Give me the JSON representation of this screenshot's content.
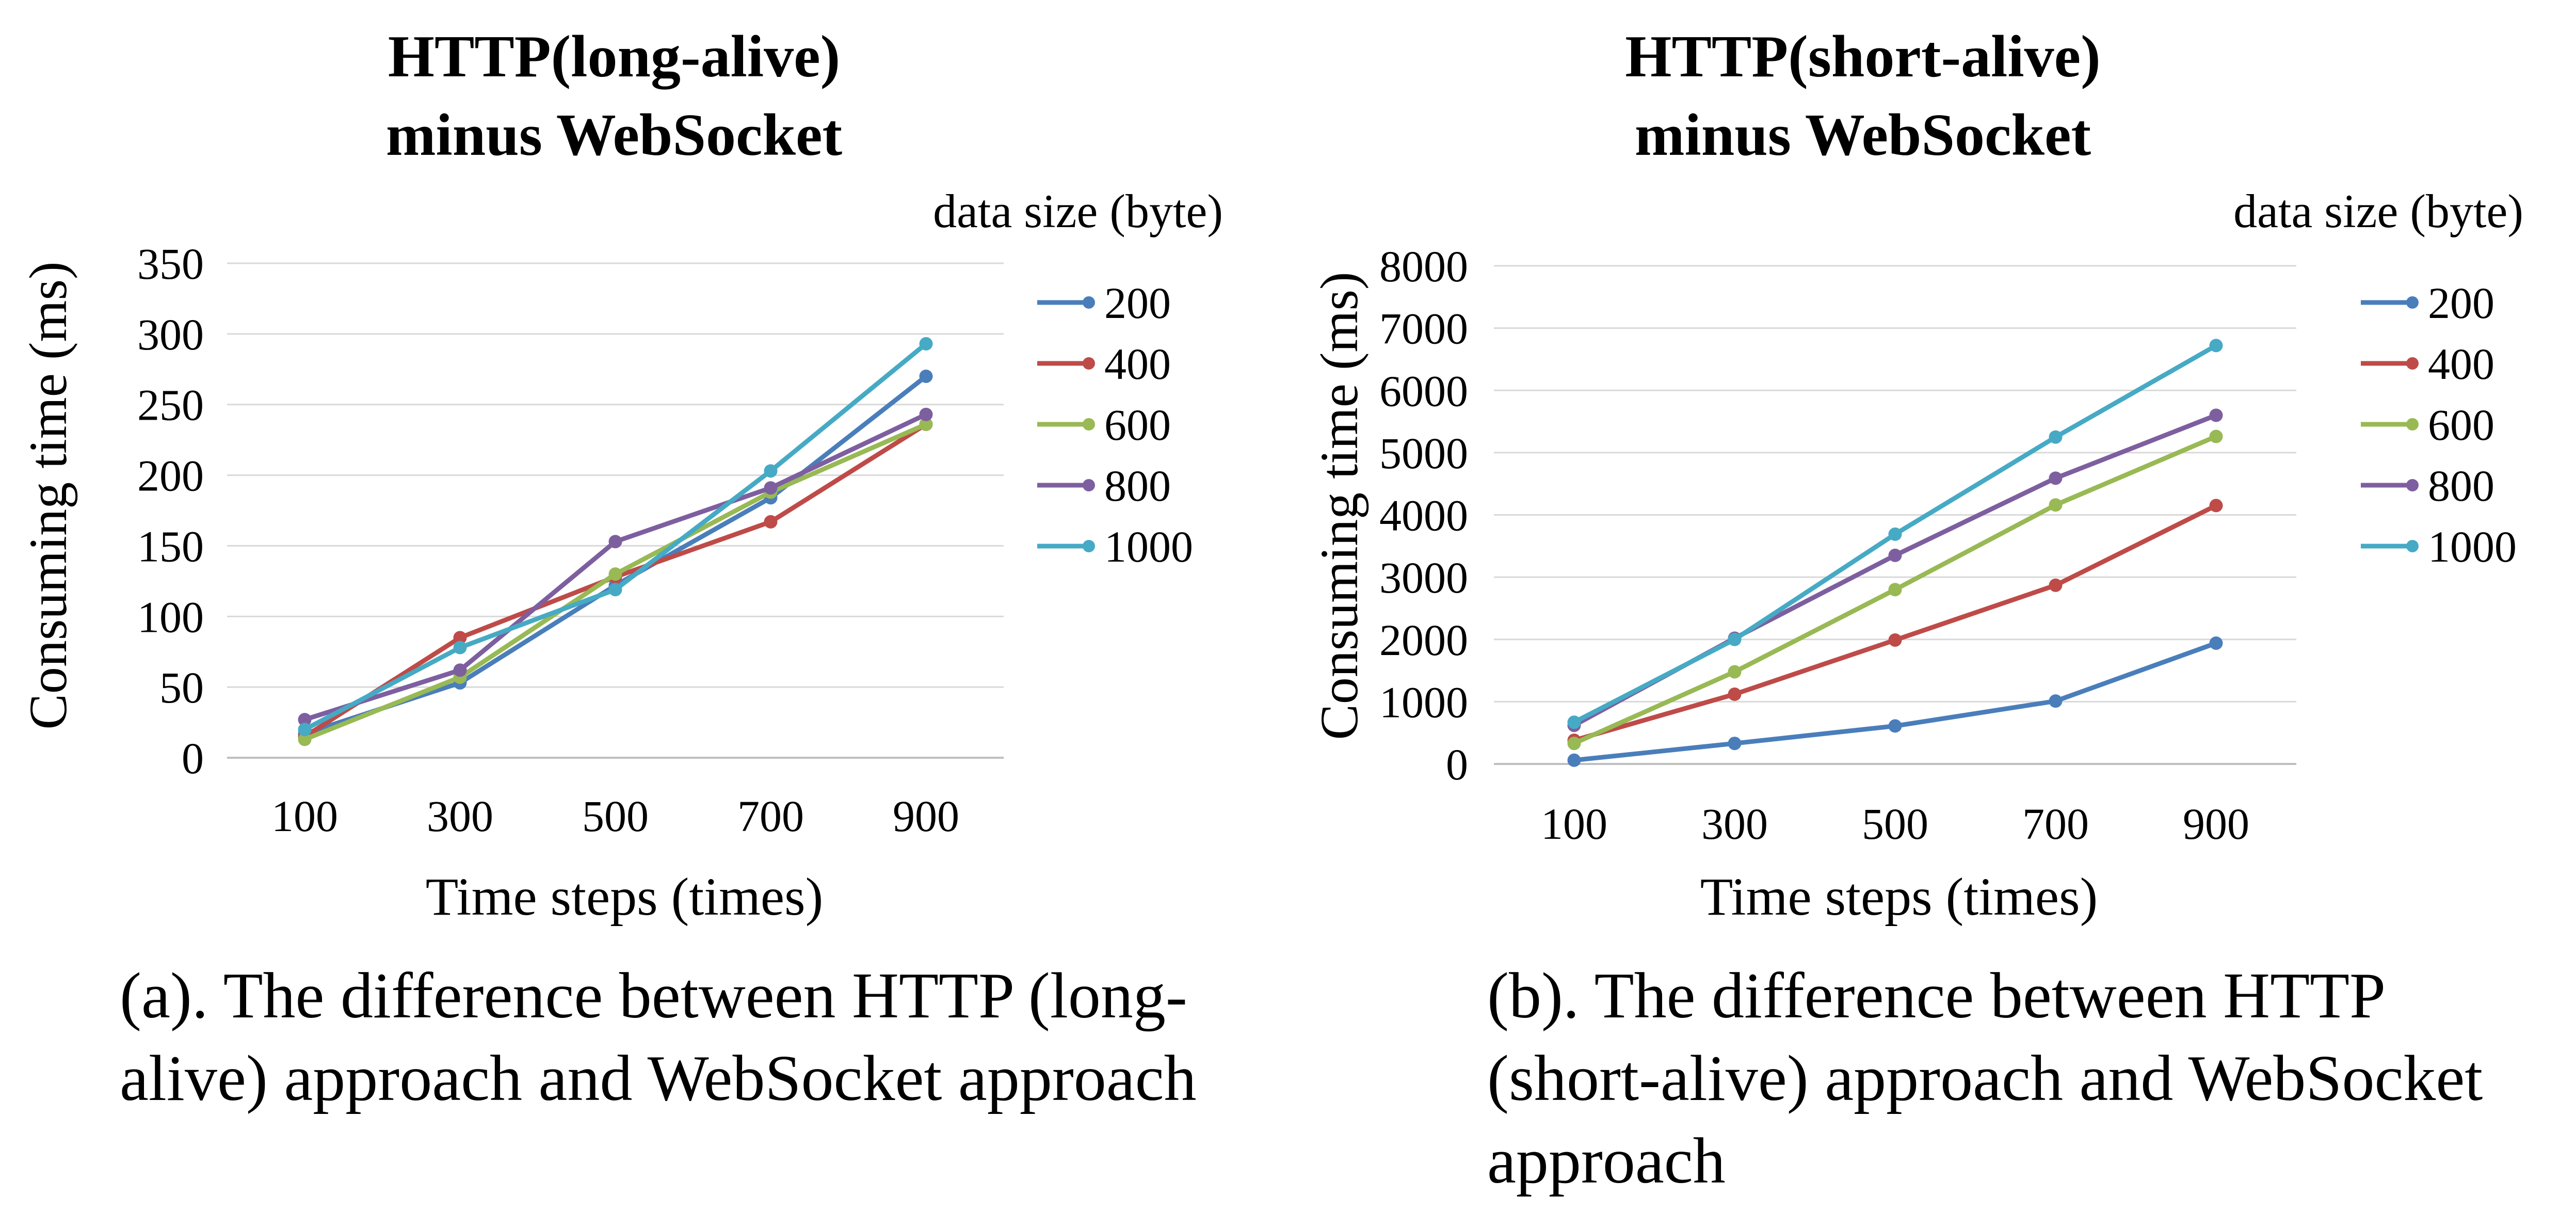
{
  "colors": {
    "200": "#4a7ebb",
    "400": "#be4b48",
    "600": "#98b954",
    "800": "#7d5fa0",
    "1000": "#46aac5",
    "grid": "#d9d9d9",
    "axis": "#bfbfbf"
  },
  "chart_data": [
    {
      "type": "line",
      "title_lines": [
        "HTTP(long-alive)",
        "minus WebSocket"
      ],
      "xlabel": "Time steps (times)",
      "ylabel": "Consuming time (ms)",
      "legend_title": "data size (byte)",
      "legend_position": "right",
      "grid": true,
      "ylim": [
        0,
        350
      ],
      "yticks": [
        "0",
        "50",
        "100",
        "150",
        "200",
        "250",
        "300",
        "350"
      ],
      "categories": [
        "100",
        "300",
        "500",
        "700",
        "900"
      ],
      "series": [
        {
          "name": "200",
          "values": [
            17,
            53,
            122,
            184,
            270
          ]
        },
        {
          "name": "400",
          "values": [
            15,
            85,
            128,
            167,
            236
          ]
        },
        {
          "name": "600",
          "values": [
            13,
            57,
            130,
            188,
            236
          ]
        },
        {
          "name": "800",
          "values": [
            27,
            62,
            153,
            191,
            243
          ]
        },
        {
          "name": "1000",
          "values": [
            20,
            78,
            119,
            203,
            293
          ]
        }
      ],
      "caption": "(a). The difference between HTTP (long-alive) approach and WebSocket approach"
    },
    {
      "type": "line",
      "title_lines": [
        "HTTP(short-alive)",
        "minus WebSocket"
      ],
      "xlabel": "Time steps (times)",
      "ylabel": "Consuming time (ms)",
      "legend_title": "data size (byte)",
      "legend_position": "right",
      "grid": true,
      "ylim": [
        0,
        8000
      ],
      "yticks": [
        "0",
        "1000",
        "2000",
        "3000",
        "4000",
        "5000",
        "6000",
        "7000",
        "8000"
      ],
      "categories": [
        "100",
        "300",
        "500",
        "700",
        "900"
      ],
      "series": [
        {
          "name": "200",
          "values": [
            60,
            330,
            610,
            1010,
            1940
          ]
        },
        {
          "name": "400",
          "values": [
            380,
            1120,
            1990,
            2870,
            4150
          ]
        },
        {
          "name": "600",
          "values": [
            330,
            1480,
            2800,
            4160,
            5260
          ]
        },
        {
          "name": "800",
          "values": [
            620,
            2020,
            3350,
            4590,
            5600
          ]
        },
        {
          "name": "1000",
          "values": [
            670,
            2000,
            3690,
            5250,
            6720
          ]
        }
      ],
      "caption": "(b). The difference between HTTP (short-alive) approach and WebSocket approach"
    }
  ]
}
